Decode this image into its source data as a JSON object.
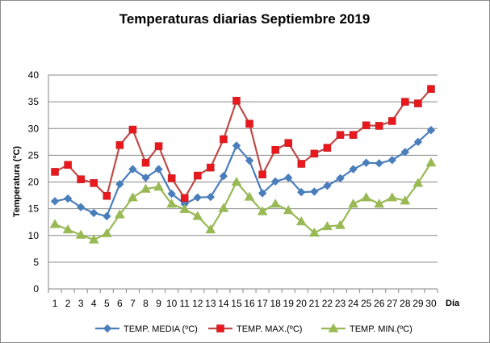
{
  "chart_data": {
    "type": "line",
    "title": "Temperaturas diarias Septiembre 2019",
    "xlabel": "Día",
    "ylabel": "Temperatura (ºC)",
    "ylim": [
      0,
      40
    ],
    "yticks": [
      "0",
      "5",
      "10",
      "15",
      "20",
      "25",
      "30",
      "35",
      "40"
    ],
    "grid": true,
    "legend_position": "bottom",
    "categories": [
      "1",
      "2",
      "3",
      "4",
      "5",
      "6",
      "7",
      "8",
      "9",
      "10",
      "11",
      "12",
      "13",
      "14",
      "15",
      "16",
      "17",
      "18",
      "19",
      "20",
      "21",
      "22",
      "23",
      "24",
      "25",
      "26",
      "27",
      "28",
      "29",
      "30"
    ],
    "series": [
      {
        "name": "TEMP. MEDIA (ºC)",
        "color": "#4a7ebb",
        "marker": "diamond",
        "values": [
          16.4,
          16.9,
          15.3,
          14.2,
          13.6,
          19.6,
          22.4,
          20.8,
          22.4,
          17.8,
          15.9,
          17.1,
          17.2,
          21.1,
          26.8,
          24.0,
          17.9,
          20.1,
          20.8,
          18.1,
          18.2,
          19.3,
          20.7,
          22.4,
          23.6,
          23.5,
          24.1,
          25.6,
          27.5,
          29.7
        ]
      },
      {
        "name": "TEMP. MAX.(ºC)",
        "color": "#be4b48",
        "marker_color": "#e8181d",
        "marker": "square",
        "values": [
          21.9,
          23.2,
          20.5,
          19.8,
          17.4,
          26.9,
          29.8,
          23.6,
          26.7,
          20.7,
          17.0,
          21.2,
          22.7,
          28.0,
          35.2,
          30.9,
          21.4,
          26.0,
          27.3,
          23.4,
          25.3,
          26.4,
          28.8,
          28.8,
          30.6,
          30.5,
          31.4,
          35.0,
          34.7,
          37.4
        ]
      },
      {
        "name": "TEMP. MIN.(ºC)",
        "color": "#98b954",
        "marker": "triangle",
        "values": [
          12.1,
          11.1,
          10.1,
          9.2,
          10.4,
          13.9,
          17.1,
          18.7,
          19.1,
          15.9,
          14.9,
          13.6,
          11.1,
          15.1,
          20.0,
          17.2,
          14.5,
          15.9,
          14.7,
          12.6,
          10.5,
          11.7,
          11.9,
          15.9,
          17.1,
          15.9,
          17.1,
          16.5,
          19.8,
          23.6
        ]
      }
    ]
  }
}
